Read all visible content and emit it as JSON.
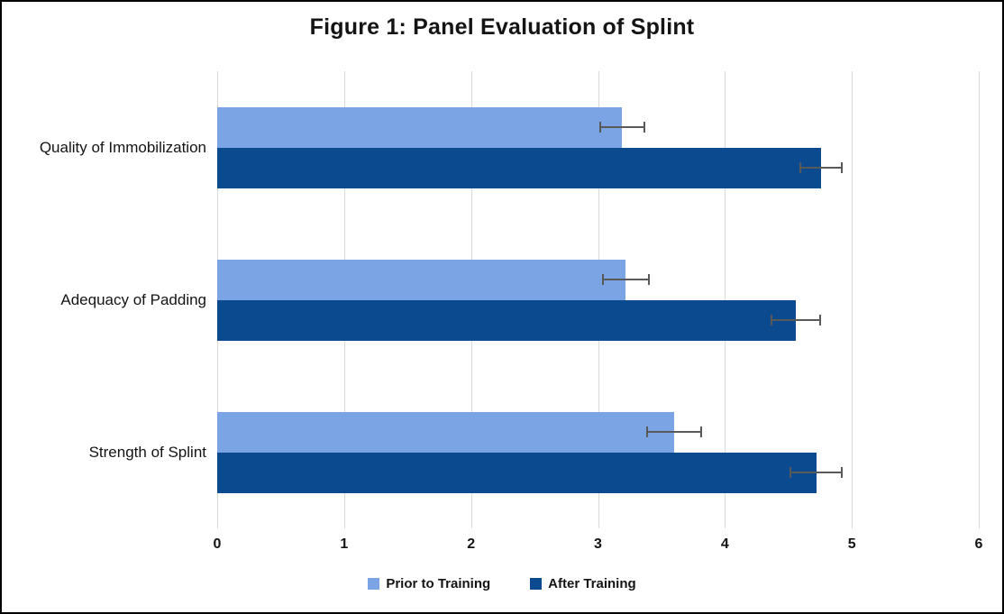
{
  "chart_data": {
    "type": "bar",
    "orientation": "horizontal",
    "title": "Figure 1: Panel Evaluation of Splint",
    "categories": [
      "Quality of Immobilization",
      "Adequacy of Padding",
      "Strength of Splint"
    ],
    "series": [
      {
        "name": "Prior to Training",
        "color": "#7aa4e4",
        "values": [
          3.19,
          3.22,
          3.6
        ],
        "errors": [
          0.18,
          0.19,
          0.22
        ]
      },
      {
        "name": "After Training",
        "color": "#0b4a8f",
        "values": [
          4.76,
          4.56,
          4.72
        ],
        "errors": [
          0.17,
          0.2,
          0.21
        ]
      }
    ],
    "xlim": [
      0,
      6
    ],
    "xticks": [
      "0",
      "1",
      "2",
      "3",
      "4",
      "5",
      "6"
    ],
    "grid": "vertical",
    "gridline_color": "#d9d9d9",
    "error_bar_color": "#595959",
    "legend_position": "bottom"
  }
}
